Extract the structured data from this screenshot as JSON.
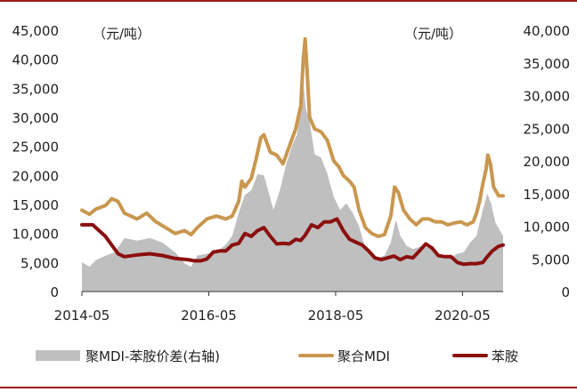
{
  "chart_data": {
    "type": "line",
    "title": "",
    "left_axis": {
      "unit_label": "（元/吨）",
      "ylim": [
        0,
        45000
      ],
      "ticks": [
        "0",
        "5,000",
        "10,000",
        "15,000",
        "20,000",
        "25,000",
        "30,000",
        "35,000",
        "40,000",
        "45,000"
      ]
    },
    "right_axis": {
      "unit_label": "（元/吨）",
      "ylim": [
        0,
        40000
      ],
      "ticks": [
        "0",
        "5,000",
        "10,000",
        "15,000",
        "20,000",
        "25,000",
        "30,000",
        "35,000",
        "40,000"
      ]
    },
    "xlim": [
      2014.33,
      2020.97
    ],
    "x_ticks": [
      {
        "x": 2014.33,
        "label": "2014-05"
      },
      {
        "x": 2016.33,
        "label": "2016-05"
      },
      {
        "x": 2018.33,
        "label": "2018-05"
      },
      {
        "x": 2020.33,
        "label": "2020-05"
      }
    ],
    "series": [
      {
        "name": "聚MDI-苯胺价差(右轴)",
        "kind": "area",
        "axis": "right",
        "color": "#bfbfbf",
        "points": [
          [
            2014.33,
            4500
          ],
          [
            2014.45,
            3800
          ],
          [
            2014.55,
            4800
          ],
          [
            2014.7,
            5500
          ],
          [
            2014.85,
            6000
          ],
          [
            2015.0,
            8200
          ],
          [
            2015.2,
            7800
          ],
          [
            2015.4,
            8200
          ],
          [
            2015.6,
            7500
          ],
          [
            2015.8,
            6000
          ],
          [
            2015.95,
            4300
          ],
          [
            2016.05,
            3800
          ],
          [
            2016.15,
            5500
          ],
          [
            2016.3,
            5800
          ],
          [
            2016.45,
            6000
          ],
          [
            2016.6,
            7200
          ],
          [
            2016.7,
            8500
          ],
          [
            2016.8,
            12000
          ],
          [
            2016.9,
            14800
          ],
          [
            2017.0,
            15500
          ],
          [
            2017.1,
            18000
          ],
          [
            2017.2,
            17800
          ],
          [
            2017.28,
            15000
          ],
          [
            2017.35,
            12500
          ],
          [
            2017.45,
            15500
          ],
          [
            2017.55,
            19500
          ],
          [
            2017.65,
            22500
          ],
          [
            2017.72,
            24000
          ],
          [
            2017.78,
            28000
          ],
          [
            2017.82,
            32000
          ],
          [
            2017.86,
            28000
          ],
          [
            2017.92,
            26000
          ],
          [
            2018.0,
            21000
          ],
          [
            2018.1,
            20500
          ],
          [
            2018.2,
            18000
          ],
          [
            2018.3,
            14500
          ],
          [
            2018.4,
            12500
          ],
          [
            2018.5,
            13500
          ],
          [
            2018.6,
            12000
          ],
          [
            2018.7,
            10000
          ],
          [
            2018.8,
            6500
          ],
          [
            2018.9,
            5500
          ],
          [
            2019.0,
            5200
          ],
          [
            2019.1,
            5500
          ],
          [
            2019.2,
            7500
          ],
          [
            2019.28,
            11000
          ],
          [
            2019.35,
            8500
          ],
          [
            2019.45,
            7000
          ],
          [
            2019.55,
            6500
          ],
          [
            2019.7,
            7000
          ],
          [
            2019.85,
            6500
          ],
          [
            2019.95,
            5500
          ],
          [
            2020.05,
            5000
          ],
          [
            2020.15,
            5200
          ],
          [
            2020.25,
            5800
          ],
          [
            2020.35,
            6000
          ],
          [
            2020.45,
            7500
          ],
          [
            2020.55,
            8500
          ],
          [
            2020.65,
            12500
          ],
          [
            2020.72,
            15000
          ],
          [
            2020.78,
            13500
          ],
          [
            2020.85,
            10500
          ],
          [
            2020.97,
            8500
          ]
        ]
      },
      {
        "name": "聚合MDI",
        "kind": "line",
        "axis": "left",
        "color": "#c9974f",
        "points": [
          [
            2014.33,
            14000
          ],
          [
            2014.45,
            13300
          ],
          [
            2014.55,
            14200
          ],
          [
            2014.7,
            14800
          ],
          [
            2014.8,
            16000
          ],
          [
            2014.9,
            15500
          ],
          [
            2015.0,
            13500
          ],
          [
            2015.2,
            12500
          ],
          [
            2015.35,
            13500
          ],
          [
            2015.5,
            12000
          ],
          [
            2015.65,
            11000
          ],
          [
            2015.8,
            10000
          ],
          [
            2015.95,
            10500
          ],
          [
            2016.05,
            9800
          ],
          [
            2016.15,
            11000
          ],
          [
            2016.3,
            12500
          ],
          [
            2016.45,
            13000
          ],
          [
            2016.6,
            12500
          ],
          [
            2016.7,
            13000
          ],
          [
            2016.8,
            15500
          ],
          [
            2016.85,
            19000
          ],
          [
            2016.9,
            18000
          ],
          [
            2017.0,
            19500
          ],
          [
            2017.08,
            23000
          ],
          [
            2017.15,
            26500
          ],
          [
            2017.2,
            27000
          ],
          [
            2017.3,
            24000
          ],
          [
            2017.4,
            23500
          ],
          [
            2017.5,
            22000
          ],
          [
            2017.6,
            25000
          ],
          [
            2017.7,
            28000
          ],
          [
            2017.78,
            32000
          ],
          [
            2017.82,
            40000
          ],
          [
            2017.85,
            43500
          ],
          [
            2017.88,
            38000
          ],
          [
            2017.92,
            30000
          ],
          [
            2018.0,
            28000
          ],
          [
            2018.1,
            27500
          ],
          [
            2018.2,
            26000
          ],
          [
            2018.3,
            22500
          ],
          [
            2018.38,
            21500
          ],
          [
            2018.45,
            20000
          ],
          [
            2018.55,
            19000
          ],
          [
            2018.62,
            18000
          ],
          [
            2018.7,
            14000
          ],
          [
            2018.8,
            11000
          ],
          [
            2018.9,
            10000
          ],
          [
            2019.0,
            9500
          ],
          [
            2019.1,
            9800
          ],
          [
            2019.2,
            13000
          ],
          [
            2019.26,
            18000
          ],
          [
            2019.32,
            17000
          ],
          [
            2019.4,
            14000
          ],
          [
            2019.5,
            12500
          ],
          [
            2019.6,
            11500
          ],
          [
            2019.7,
            12500
          ],
          [
            2019.8,
            12500
          ],
          [
            2019.9,
            12000
          ],
          [
            2020.0,
            12000
          ],
          [
            2020.1,
            11500
          ],
          [
            2020.2,
            11800
          ],
          [
            2020.3,
            12000
          ],
          [
            2020.4,
            11500
          ],
          [
            2020.5,
            12000
          ],
          [
            2020.55,
            13500
          ],
          [
            2020.6,
            15500
          ],
          [
            2020.65,
            18500
          ],
          [
            2020.7,
            21000
          ],
          [
            2020.73,
            23500
          ],
          [
            2020.77,
            22000
          ],
          [
            2020.82,
            18000
          ],
          [
            2020.9,
            16500
          ],
          [
            2020.97,
            16500
          ]
        ]
      },
      {
        "name": "苯胺",
        "kind": "line",
        "axis": "left",
        "color": "#8b0f0f",
        "points": [
          [
            2014.33,
            11500
          ],
          [
            2014.5,
            11500
          ],
          [
            2014.6,
            10500
          ],
          [
            2014.7,
            9500
          ],
          [
            2014.8,
            8000
          ],
          [
            2014.9,
            6500
          ],
          [
            2015.0,
            6000
          ],
          [
            2015.2,
            6300
          ],
          [
            2015.4,
            6500
          ],
          [
            2015.6,
            6200
          ],
          [
            2015.8,
            5700
          ],
          [
            2016.0,
            5500
          ],
          [
            2016.1,
            5300
          ],
          [
            2016.2,
            5300
          ],
          [
            2016.3,
            5600
          ],
          [
            2016.4,
            6800
          ],
          [
            2016.5,
            7000
          ],
          [
            2016.6,
            7000
          ],
          [
            2016.7,
            8000
          ],
          [
            2016.8,
            8300
          ],
          [
            2016.9,
            10000
          ],
          [
            2017.0,
            9500
          ],
          [
            2017.1,
            10500
          ],
          [
            2017.2,
            11000
          ],
          [
            2017.3,
            9500
          ],
          [
            2017.4,
            8200
          ],
          [
            2017.5,
            8300
          ],
          [
            2017.6,
            8200
          ],
          [
            2017.7,
            9000
          ],
          [
            2017.78,
            8800
          ],
          [
            2017.85,
            9700
          ],
          [
            2017.95,
            11500
          ],
          [
            2018.05,
            11000
          ],
          [
            2018.15,
            12000
          ],
          [
            2018.25,
            12000
          ],
          [
            2018.35,
            12500
          ],
          [
            2018.45,
            10500
          ],
          [
            2018.55,
            9000
          ],
          [
            2018.65,
            8500
          ],
          [
            2018.75,
            8000
          ],
          [
            2018.85,
            7000
          ],
          [
            2018.95,
            5800
          ],
          [
            2019.05,
            5500
          ],
          [
            2019.15,
            5800
          ],
          [
            2019.25,
            6100
          ],
          [
            2019.35,
            5500
          ],
          [
            2019.45,
            6000
          ],
          [
            2019.55,
            5800
          ],
          [
            2019.65,
            7000
          ],
          [
            2019.75,
            8200
          ],
          [
            2019.85,
            7500
          ],
          [
            2019.95,
            6200
          ],
          [
            2020.05,
            6000
          ],
          [
            2020.15,
            6000
          ],
          [
            2020.25,
            5000
          ],
          [
            2020.35,
            4700
          ],
          [
            2020.45,
            4800
          ],
          [
            2020.55,
            4800
          ],
          [
            2020.65,
            5000
          ],
          [
            2020.72,
            6000
          ],
          [
            2020.8,
            7000
          ],
          [
            2020.9,
            7800
          ],
          [
            2020.97,
            8000
          ]
        ]
      }
    ],
    "legend": [
      "聚MDI-苯胺价差(右轴)",
      "聚合MDI",
      "苯胺"
    ],
    "legend_position": "bottom"
  }
}
